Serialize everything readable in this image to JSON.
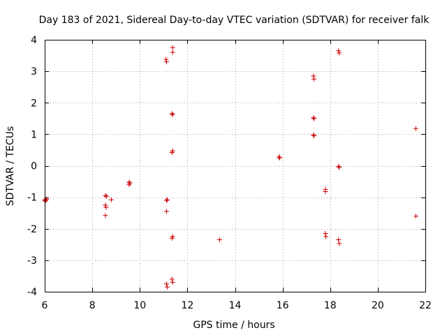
{
  "chart_data": {
    "type": "scatter",
    "title": "Day 183 of 2021, Sidereal Day-to-day VTEC variation (SDTVAR) for receiver falk",
    "xlabel": "GPS time / hours",
    "ylabel": "SDTVAR / TECUs",
    "xlim": [
      6,
      22
    ],
    "ylim": [
      -4,
      4
    ],
    "xticks": [
      6,
      8,
      10,
      12,
      14,
      16,
      18,
      20,
      22
    ],
    "yticks": [
      -4,
      -3,
      -2,
      -1,
      0,
      1,
      2,
      3,
      4
    ],
    "grid": true,
    "marker": "+",
    "color": "#cc0000",
    "series": [
      {
        "name": "SDTVAR",
        "x": [
          6.0,
          6.02,
          6.05,
          6.08,
          8.55,
          8.6,
          8.55,
          8.58,
          8.55,
          8.8,
          9.55,
          9.55,
          9.58,
          11.1,
          11.12,
          11.15,
          11.12,
          11.12,
          11.12,
          11.15,
          11.38,
          11.38,
          11.35,
          11.38,
          11.38,
          11.35,
          11.38,
          11.35,
          11.38,
          11.35,
          13.35,
          15.85,
          15.88,
          17.3,
          17.32,
          17.3,
          17.32,
          17.3,
          17.32,
          17.8,
          17.8,
          17.8,
          17.82,
          18.35,
          18.38,
          18.35,
          18.38,
          18.35,
          18.38,
          21.6,
          21.6
        ],
        "y": [
          -1.08,
          -1.12,
          -1.1,
          -1.06,
          -0.95,
          -0.97,
          -1.25,
          -1.32,
          -1.58,
          -1.08,
          -0.52,
          -0.6,
          -0.55,
          3.38,
          3.3,
          -1.08,
          -1.1,
          -1.45,
          -3.75,
          -3.85,
          3.75,
          3.6,
          1.65,
          1.63,
          0.47,
          0.42,
          -2.25,
          -2.3,
          -3.7,
          -3.6,
          -2.35,
          0.28,
          0.25,
          2.85,
          2.75,
          1.52,
          1.5,
          0.98,
          0.95,
          -0.75,
          -0.82,
          -2.15,
          -2.25,
          3.65,
          3.58,
          -0.02,
          -0.05,
          -2.35,
          -2.47,
          1.18,
          -1.6
        ]
      }
    ]
  }
}
